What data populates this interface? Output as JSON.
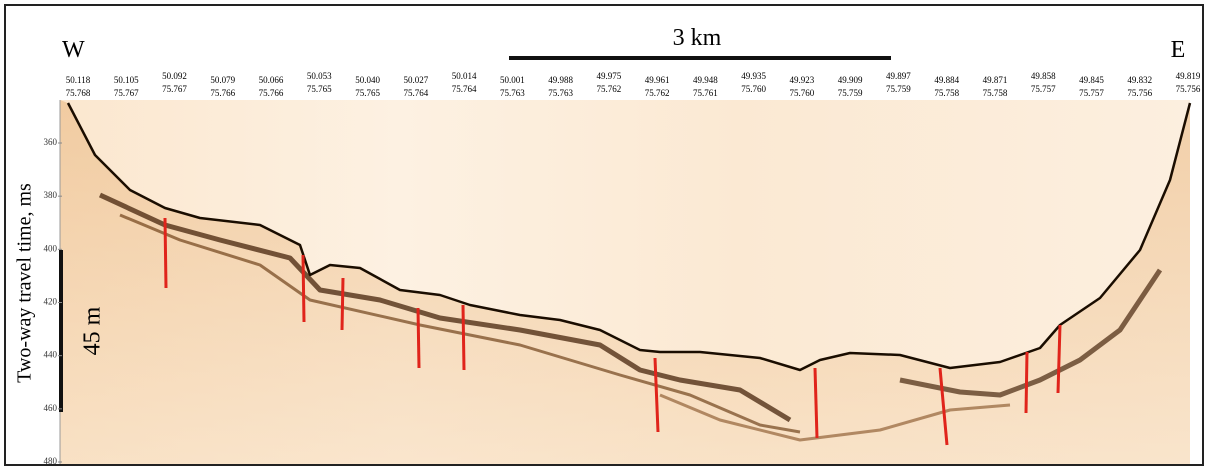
{
  "labels": {
    "west": "W",
    "east": "E",
    "scale_bar": "3 km",
    "depth_bar": "45 m",
    "y_axis": "Two-way travel time, ms"
  },
  "yticks": [
    360,
    380,
    400,
    420,
    440,
    460,
    480
  ],
  "coordinates": [
    {
      "lat": "50.118",
      "lon": "75.768"
    },
    {
      "lat": "50.105",
      "lon": "75.767"
    },
    {
      "lat": "50.092",
      "lon": "75.767"
    },
    {
      "lat": "50.079",
      "lon": "75.766"
    },
    {
      "lat": "50.066",
      "lon": "75.766"
    },
    {
      "lat": "50.053",
      "lon": "75.765"
    },
    {
      "lat": "50.040",
      "lon": "75.765"
    },
    {
      "lat": "50.027",
      "lon": "75.764"
    },
    {
      "lat": "50.014",
      "lon": "75.764"
    },
    {
      "lat": "50.001",
      "lon": "75.763"
    },
    {
      "lat": "49.988",
      "lon": "75.763"
    },
    {
      "lat": "49.975",
      "lon": "75.762"
    },
    {
      "lat": "49.961",
      "lon": "75.762"
    },
    {
      "lat": "49.948",
      "lon": "75.761"
    },
    {
      "lat": "49.935",
      "lon": "75.760"
    },
    {
      "lat": "49.923",
      "lon": "75.760"
    },
    {
      "lat": "49.909",
      "lon": "75.759"
    },
    {
      "lat": "49.897",
      "lon": "75.759"
    },
    {
      "lat": "49.884",
      "lon": "75.758"
    },
    {
      "lat": "49.871",
      "lon": "75.758"
    },
    {
      "lat": "49.858",
      "lon": "75.757"
    },
    {
      "lat": "49.845",
      "lon": "75.757"
    },
    {
      "lat": "49.832",
      "lon": "75.756"
    },
    {
      "lat": "49.819",
      "lon": "75.756"
    }
  ]
}
